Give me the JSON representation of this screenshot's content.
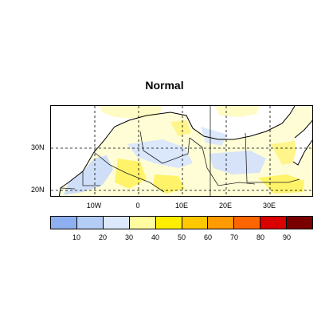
{
  "title": "Normal",
  "lat_labels": [
    "30N",
    "20N"
  ],
  "lon_labels": [
    "10W",
    "0",
    "10E",
    "20E",
    "30E"
  ],
  "colorbar": {
    "tick_labels": [
      "10",
      "20",
      "30",
      "40",
      "50",
      "60",
      "70",
      "80",
      "90"
    ],
    "colors": [
      "#8fb0f0",
      "#b4cdf5",
      "#dce8fb",
      "#fffca0",
      "#ffee00",
      "#ffc800",
      "#ff9a00",
      "#ff6600",
      "#d90000",
      "#7a0000"
    ]
  },
  "map_colors": {
    "sea": "#ffffff",
    "land_background": "#fffdd6",
    "low": "#cfdff8",
    "mid": "#fff6a8",
    "high": "#fff000"
  }
}
